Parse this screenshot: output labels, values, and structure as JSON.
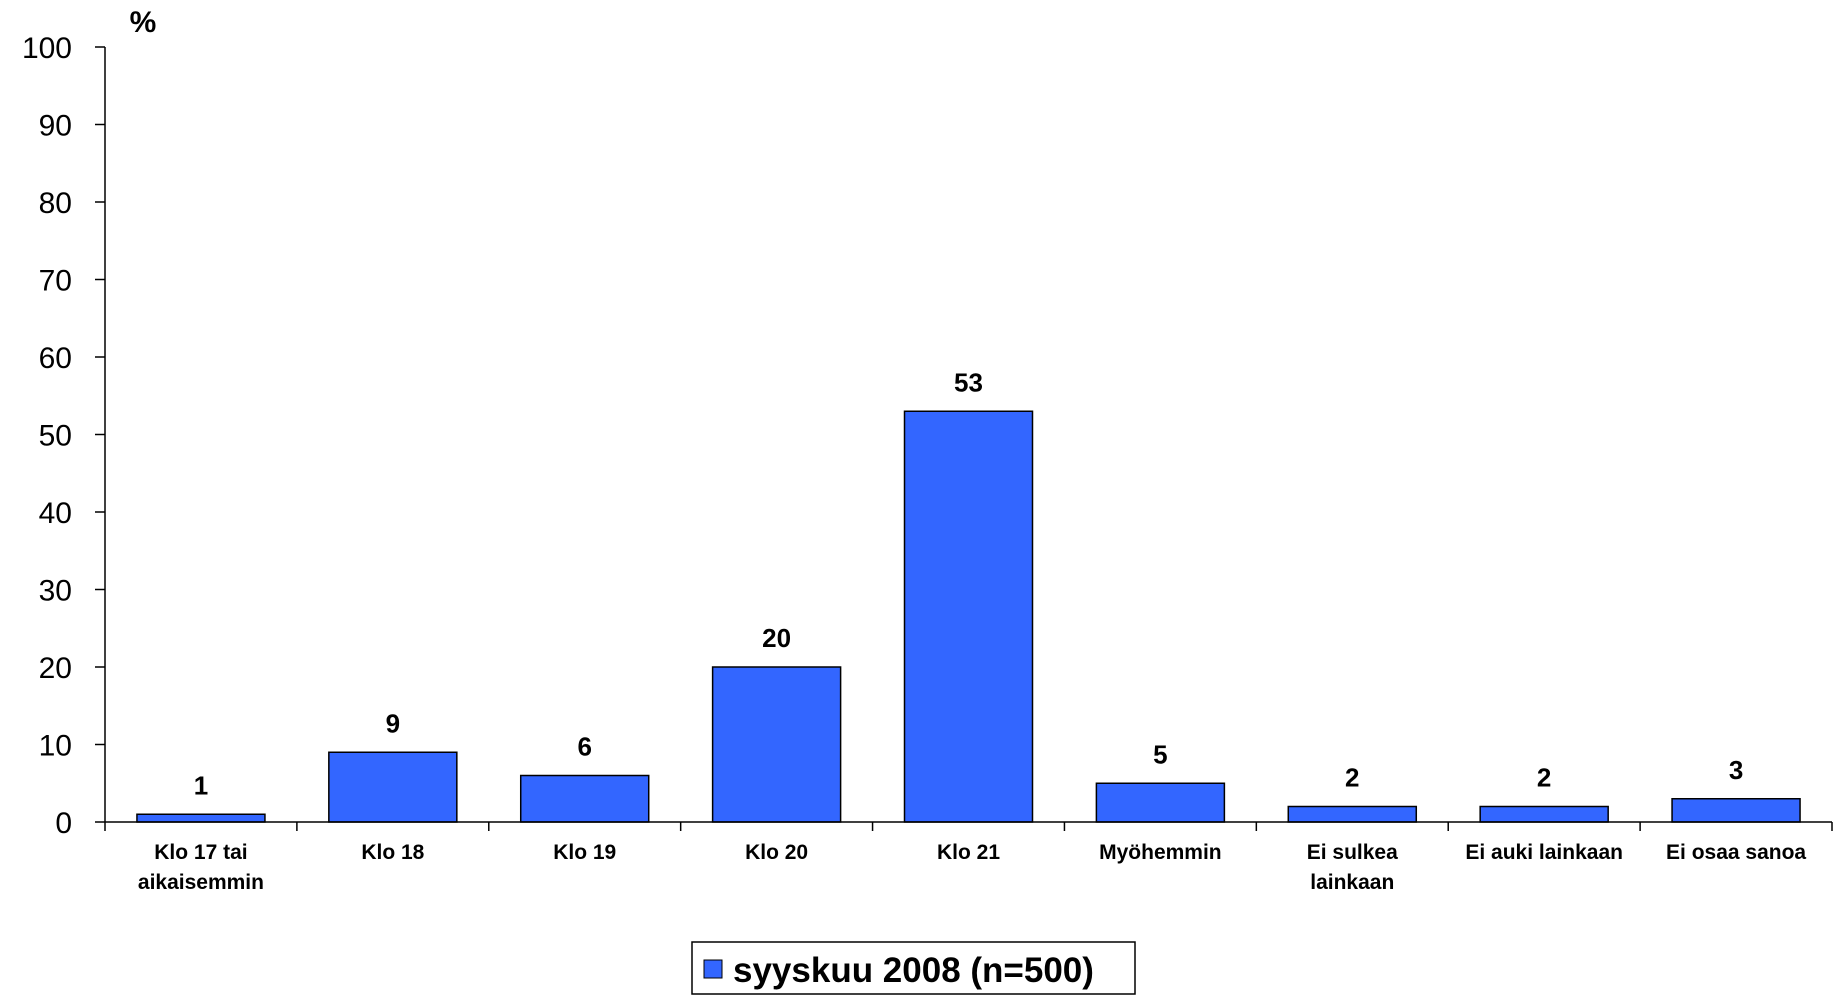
{
  "colors": {
    "bar_fill": "#3366FF",
    "bar_stroke": "#000000",
    "axis": "#000000"
  },
  "chart_data": {
    "type": "bar",
    "title": "",
    "xlabel": "",
    "ylabel": "%",
    "ylim": [
      0,
      100
    ],
    "yticks": [
      0,
      10,
      20,
      30,
      40,
      50,
      60,
      70,
      80,
      90,
      100
    ],
    "categories": [
      [
        "Klo 17 tai",
        "aikaisemmin"
      ],
      [
        "Klo 18"
      ],
      [
        "Klo 19"
      ],
      [
        "Klo 20"
      ],
      [
        "Klo 21"
      ],
      [
        "Myöhemmin"
      ],
      [
        "Ei sulkea",
        "lainkaan"
      ],
      [
        "Ei auki lainkaan"
      ],
      [
        "Ei osaa sanoa"
      ]
    ],
    "series": [
      {
        "name": "syyskuu 2008 (n=500)",
        "values": [
          1,
          9,
          6,
          20,
          53,
          5,
          2,
          2,
          3
        ]
      }
    ],
    "data_labels": true,
    "grid": false,
    "legend_position": "bottom"
  }
}
